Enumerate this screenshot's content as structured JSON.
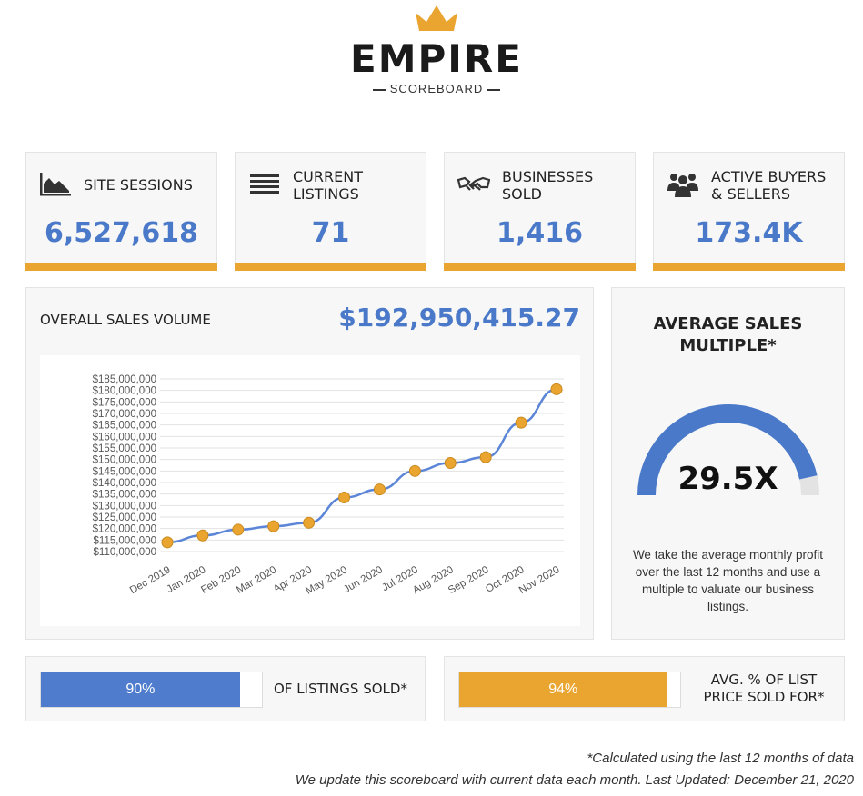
{
  "brand": {
    "name": "EMPIRE",
    "subtitle": "SCOREBOARD",
    "accent_color": "#eaa531",
    "primary_color": "#4a79c9"
  },
  "stats": [
    {
      "icon": "area-chart-icon",
      "label": "SITE SESSIONS",
      "value": "6,527,618"
    },
    {
      "icon": "list-lines-icon",
      "label": "CURRENT\nLISTINGS",
      "value": "71"
    },
    {
      "icon": "handshake-icon",
      "label": "BUSINESSES\nSOLD",
      "value": "1,416"
    },
    {
      "icon": "people-group-icon",
      "label": "ACTIVE BUYERS\n& SELLERS",
      "value": "173.4K"
    }
  ],
  "sales": {
    "title": "OVERALL SALES VOLUME",
    "amount": "$192,950,415.27"
  },
  "chart_data": {
    "type": "line",
    "categories": [
      "Dec 2019",
      "Jan 2020",
      "Feb 2020",
      "Mar 2020",
      "Apr 2020",
      "May 2020",
      "Jun 2020",
      "Jul 2020",
      "Aug 2020",
      "Sep 2020",
      "Oct 2020",
      "Nov 2020"
    ],
    "values": [
      114000000,
      117000000,
      119500000,
      121000000,
      122500000,
      133500000,
      137000000,
      145000000,
      148500000,
      151000000,
      166000000,
      180500000
    ],
    "ylim": [
      110000000,
      185000000
    ],
    "yticks": [
      "$110,000,000",
      "$115,000,000",
      "$120,000,000",
      "$125,000,000",
      "$130,000,000",
      "$135,000,000",
      "$140,000,000",
      "$145,000,000",
      "$150,000,000",
      "$155,000,000",
      "$160,000,000",
      "$165,000,000",
      "$170,000,000",
      "$175,000,000",
      "$180,000,000",
      "$185,000,000"
    ],
    "line_color": "#5b85d6",
    "marker_color": "#eaa531",
    "grid": true
  },
  "multiple": {
    "title_line1": "AVERAGE SALES",
    "title_line2": "MULTIPLE*",
    "value": "29.5X",
    "gauge_fraction": 0.93,
    "description": "We take the average monthly profit over the last 12 months and use a multiple to valuate our business listings."
  },
  "progress": [
    {
      "percent_label": "90%",
      "fraction": 0.9,
      "label": "OF LISTINGS SOLD*",
      "color": "#4f7ccc"
    },
    {
      "percent_label": "94%",
      "fraction": 0.94,
      "label": "AVG. % OF LIST\nPRICE SOLD FOR*",
      "color": "#eaa531"
    }
  ],
  "footer": {
    "line1": "*Calculated using the last 12 months of data",
    "line2": "We update this scoreboard with current data each month. Last Updated: December 21, 2020"
  }
}
